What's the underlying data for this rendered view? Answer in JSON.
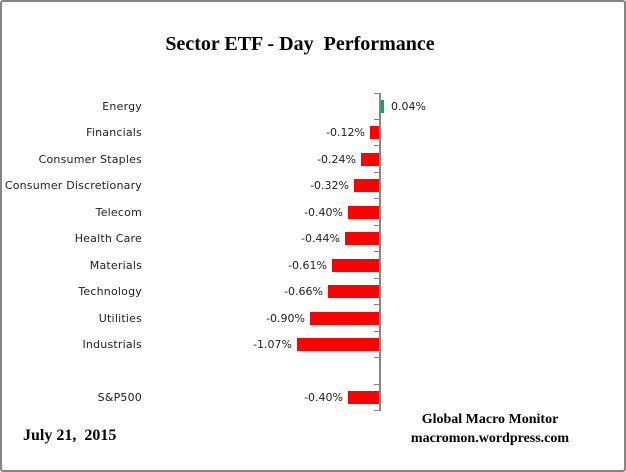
{
  "window": {
    "background": "#FFFFFF",
    "border_color": "#858585"
  },
  "title": "Sector ETF - Day  Performance",
  "footer": {
    "date": "July 21,  2015",
    "brand_line1": "Global Macro Monitor",
    "brand_line2": "macromon.wordpress.com"
  },
  "chart_data": {
    "type": "bar",
    "orientation": "horizontal",
    "title": "Sector ETF - Day  Performance",
    "categories": [
      "Energy",
      "Financials",
      "Consumer Staples",
      "Consumer Discretionary",
      "Telecom",
      "Health Care",
      "Materials",
      "Technology",
      "Utilities",
      "Industrials",
      "",
      "S&P500"
    ],
    "values": [
      0.04,
      -0.12,
      -0.24,
      -0.32,
      -0.4,
      -0.44,
      -0.61,
      -0.66,
      -0.9,
      -1.07,
      null,
      -0.4
    ],
    "value_labels": [
      "0.04%",
      "-0.12%",
      "-0.24%",
      "-0.32%",
      "-0.40%",
      "-0.44%",
      "-0.61%",
      "-0.66%",
      "-0.90%",
      "-1.07%",
      "",
      "-0.40%"
    ],
    "unit": "%",
    "xlim": [
      -1.4,
      0.6
    ],
    "gridlines": false,
    "data_labels": true,
    "legend": "none",
    "bar_color_positive": "#00B050",
    "bar_color_negative": "#FF0000",
    "axis_color": "#858585",
    "label_color": "#1F1F1F"
  }
}
